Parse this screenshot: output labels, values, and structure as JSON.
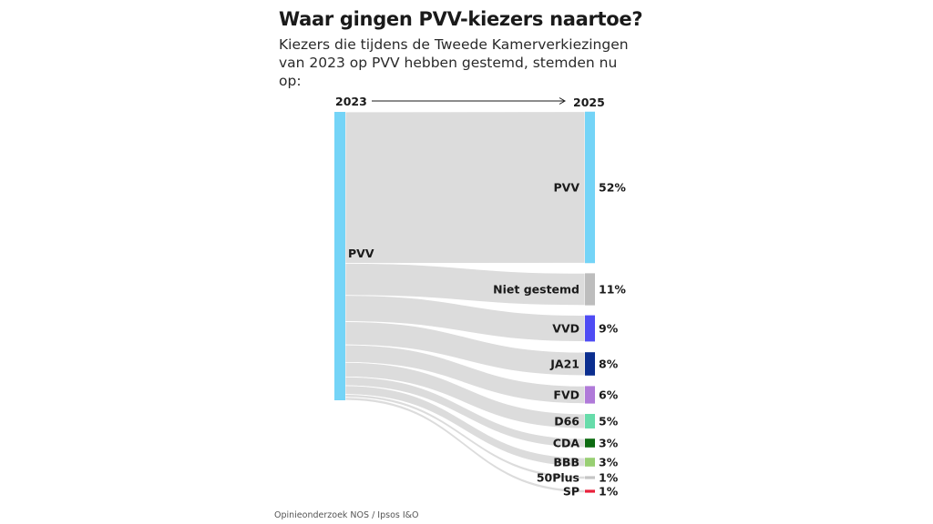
{
  "title": "Waar gingen PVV-kiezers naartoe?",
  "subtitle": "Kiezers die tijdens de Tweede Kamerverkiezingen van 2023 op PVV hebben gestemd, stemden nu op:",
  "source": "Opinieonderzoek NOS / Ipsos I&O",
  "chart_data": {
    "type": "sankey",
    "from_label": "2023",
    "to_label": "2025",
    "source": {
      "name": "PVV",
      "color": "#74d4f7"
    },
    "flow_color": "#dcdcdc",
    "targets": [
      {
        "name": "PVV",
        "value": 52,
        "label": "52%",
        "color": "#74d4f7"
      },
      {
        "name": "Niet gestemd",
        "value": 11,
        "label": "11%",
        "color": "#bdbdbd"
      },
      {
        "name": "VVD",
        "value": 9,
        "label": "9%",
        "color": "#4f4cf4"
      },
      {
        "name": "JA21",
        "value": 8,
        "label": "8%",
        "color": "#0b2e8f"
      },
      {
        "name": "FVD",
        "value": 6,
        "label": "6%",
        "color": "#b07ad9"
      },
      {
        "name": "D66",
        "value": 5,
        "label": "5%",
        "color": "#67dcaa"
      },
      {
        "name": "CDA",
        "value": 3,
        "label": "3%",
        "color": "#0c6a10"
      },
      {
        "name": "BBB",
        "value": 3,
        "label": "3%",
        "color": "#98cf73"
      },
      {
        "name": "50Plus",
        "value": 1,
        "label": "1%",
        "color": "#c5c5c5"
      },
      {
        "name": "SP",
        "value": 1,
        "label": "1%",
        "color": "#e8203a"
      }
    ]
  }
}
